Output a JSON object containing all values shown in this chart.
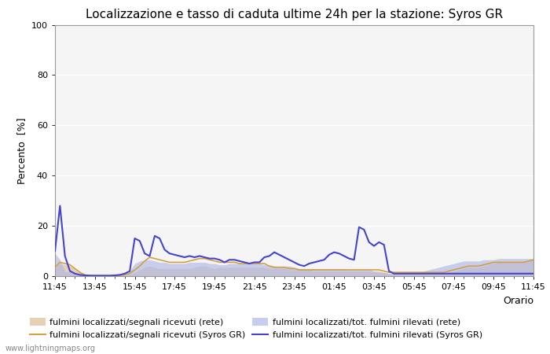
{
  "title": "Localizzazione e tasso di caduta ultime 24h per la stazione: Syros GR",
  "xlabel": "Orario",
  "ylabel": "Percento  [%]",
  "watermark": "www.lightningmaps.org",
  "x_labels": [
    "11:45",
    "13:45",
    "15:45",
    "17:45",
    "19:45",
    "21:45",
    "23:45",
    "01:45",
    "03:45",
    "05:45",
    "07:45",
    "09:45",
    "11:45"
  ],
  "ylim": [
    0,
    100
  ],
  "yticks": [
    0,
    20,
    40,
    60,
    80,
    100
  ],
  "background_color": "#ffffff",
  "plot_bg_color": "#f5f5f5",
  "grid_color": "#ffffff",
  "legend": [
    {
      "label": "fulmini localizzati/segnali ricevuti (rete)",
      "color": "#d4b483",
      "type": "fill"
    },
    {
      "label": "fulmini localizzati/segnali ricevuti (Syros GR)",
      "color": "#d4a040",
      "type": "line"
    },
    {
      "label": "fulmini localizzati/tot. fulmini rilevati (rete)",
      "color": "#b0b8e8",
      "type": "fill"
    },
    {
      "label": "fulmini localizzati/tot. fulmini rilevati (Syros GR)",
      "color": "#4444cc",
      "type": "line"
    }
  ],
  "n_points": 97,
  "series": {
    "fill_rete_signals": [
      3.5,
      5.0,
      4.5,
      4.0,
      3.0,
      1.5,
      0.5,
      0.2,
      0.1,
      0.1,
      0.1,
      0.1,
      0.1,
      0.1,
      0.2,
      0.5,
      1.5,
      2.5,
      3.5,
      4.0,
      3.5,
      3.0,
      3.0,
      3.0,
      3.0,
      3.0,
      3.0,
      3.0,
      3.5,
      4.0,
      4.0,
      3.5,
      3.0,
      3.5,
      3.5,
      3.5,
      3.5,
      3.5,
      3.5,
      3.5,
      3.5,
      3.5,
      3.5,
      3.0,
      3.0,
      3.0,
      3.0,
      2.5,
      2.5,
      2.5,
      2.5,
      2.5,
      2.0,
      2.0,
      2.0,
      2.0,
      2.0,
      2.0,
      2.0,
      2.0,
      2.0,
      2.0,
      2.0,
      2.0,
      2.0,
      2.0,
      1.5,
      1.0,
      1.0,
      1.0,
      1.0,
      1.0,
      1.0,
      1.0,
      1.0,
      1.0,
      1.0,
      1.0,
      1.0,
      1.5,
      2.0,
      2.5,
      3.0,
      3.5,
      3.5,
      3.5,
      4.0,
      4.5,
      5.0,
      5.5,
      5.5,
      5.5,
      5.5,
      5.5,
      5.5,
      6.0,
      6.5
    ],
    "line_syros_signals": [
      3.5,
      5.5,
      5.0,
      4.5,
      3.0,
      1.5,
      0.5,
      0.2,
      0.1,
      0.1,
      0.1,
      0.1,
      0.2,
      0.3,
      0.5,
      1.0,
      2.5,
      4.0,
      6.0,
      7.5,
      7.0,
      6.5,
      6.0,
      5.5,
      5.5,
      5.5,
      5.5,
      6.0,
      6.5,
      7.0,
      7.0,
      6.5,
      6.0,
      5.5,
      5.5,
      5.5,
      5.5,
      5.0,
      5.0,
      5.0,
      5.0,
      5.0,
      5.0,
      4.0,
      3.5,
      3.5,
      3.5,
      3.0,
      3.0,
      2.5,
      2.5,
      2.5,
      2.5,
      2.5,
      2.5,
      2.5,
      2.5,
      2.5,
      2.5,
      2.5,
      2.5,
      2.5,
      2.5,
      2.5,
      2.5,
      2.5,
      2.0,
      1.5,
      1.5,
      1.5,
      1.5,
      1.5,
      1.5,
      1.5,
      1.5,
      1.5,
      1.5,
      1.5,
      1.5,
      2.0,
      2.5,
      3.0,
      3.5,
      4.0,
      4.0,
      4.0,
      4.5,
      5.0,
      5.5,
      5.5,
      5.5,
      5.5,
      5.5,
      5.5,
      5.5,
      6.0,
      6.5
    ],
    "fill_rete_total": [
      9.0,
      6.5,
      2.0,
      1.5,
      1.0,
      0.5,
      0.3,
      0.2,
      0.2,
      0.2,
      0.2,
      0.2,
      0.3,
      0.5,
      1.0,
      2.0,
      5.0,
      6.0,
      6.5,
      6.5,
      6.0,
      5.5,
      5.5,
      5.0,
      5.0,
      5.0,
      5.0,
      5.5,
      5.5,
      5.5,
      5.5,
      5.0,
      5.0,
      4.5,
      4.5,
      5.0,
      5.0,
      5.0,
      5.0,
      5.0,
      5.0,
      5.0,
      4.5,
      4.5,
      4.0,
      4.0,
      4.0,
      4.0,
      3.5,
      3.0,
      3.0,
      3.0,
      3.0,
      3.0,
      3.0,
      3.0,
      3.0,
      3.0,
      3.0,
      2.5,
      2.5,
      2.5,
      2.5,
      2.5,
      2.0,
      1.5,
      1.5,
      1.0,
      1.0,
      1.0,
      1.0,
      1.0,
      1.0,
      1.5,
      2.0,
      2.5,
      3.0,
      3.5,
      4.0,
      4.5,
      5.0,
      5.5,
      6.0,
      6.0,
      6.0,
      6.0,
      6.5,
      6.5,
      6.5,
      7.0,
      7.0,
      7.0,
      7.0,
      7.0,
      7.0,
      7.0,
      7.0
    ],
    "line_syros_total": [
      10.0,
      28.0,
      8.0,
      2.0,
      1.0,
      0.5,
      0.3,
      0.2,
      0.2,
      0.2,
      0.2,
      0.2,
      0.3,
      0.5,
      1.0,
      2.0,
      15.0,
      14.0,
      9.0,
      8.0,
      16.0,
      15.0,
      10.5,
      9.0,
      8.5,
      8.0,
      7.5,
      8.0,
      7.5,
      8.0,
      7.5,
      7.0,
      7.0,
      6.5,
      5.5,
      6.5,
      6.5,
      6.0,
      5.5,
      5.0,
      5.5,
      5.5,
      7.5,
      8.0,
      9.5,
      8.5,
      7.5,
      6.5,
      5.5,
      4.5,
      4.0,
      5.0,
      5.5,
      6.0,
      6.5,
      8.5,
      9.5,
      9.0,
      8.0,
      7.0,
      6.5,
      19.5,
      18.5,
      13.5,
      12.0,
      13.5,
      12.5,
      2.0,
      1.0,
      1.0,
      1.0,
      1.0,
      1.0,
      1.0,
      1.0,
      1.0,
      1.0,
      1.0,
      1.0,
      1.0,
      1.0,
      1.0,
      1.0,
      1.0,
      1.0,
      1.0,
      1.0,
      1.0,
      1.0,
      1.0,
      1.0,
      1.0,
      1.0,
      1.0,
      1.0,
      1.0,
      1.0
    ]
  }
}
